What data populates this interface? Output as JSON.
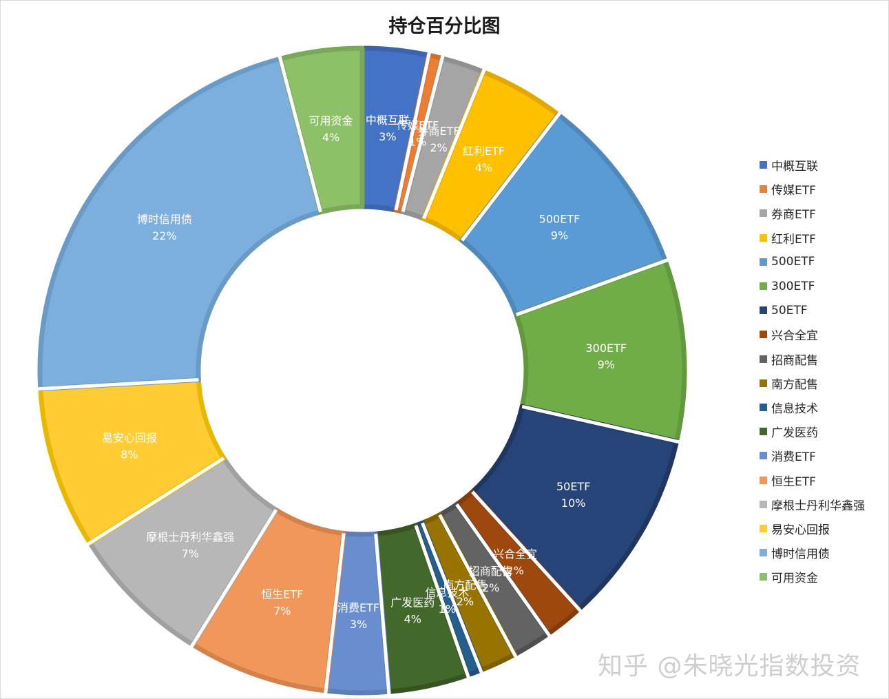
{
  "chart_data": {
    "type": "pie",
    "title": "持仓百分比图",
    "donut": true,
    "legend_position": "right",
    "categories": [
      "中概互联",
      "传媒ETF",
      "券商ETF",
      "红利ETF",
      "500ETF",
      "300ETF",
      "50ETF",
      "兴合全宜",
      "招商配售",
      "南方配售",
      "信息技术",
      "广发医药",
      "消费ETF",
      "恒生ETF",
      "摩根士丹利华鑫强",
      "易安心回报",
      "博时信用债",
      "可用资金"
    ],
    "values": [
      3.4,
      0.7,
      2.2,
      4.4,
      9.3,
      9.3,
      10.0,
      2.0,
      2.0,
      1.9,
      0.7,
      4.1,
      3.2,
      7.2,
      7.4,
      8.3,
      22.4,
      4.2
    ],
    "labels": [
      "3%",
      "1%",
      "2%",
      "4%",
      "9%",
      "9%",
      "10%",
      "2%",
      "2%",
      "2%",
      "1%",
      "4%",
      "3%",
      "7%",
      "7%",
      "8%",
      "22%",
      "4%"
    ],
    "colors": [
      "#4472C4",
      "#ED7D31",
      "#A5A5A5",
      "#FFC000",
      "#5B9BD5",
      "#70AD47",
      "#264478",
      "#9E480E",
      "#636363",
      "#997300",
      "#255E91",
      "#43682B",
      "#698ED0",
      "#F1975A",
      "#B7B7B7",
      "#FFCD33",
      "#7CAFDD",
      "#8CC168"
    ],
    "borders": [
      "#3B64AD",
      "#D06C2A",
      "#909090",
      "#E0A800",
      "#4F88BB",
      "#62983E",
      "#1E3660",
      "#833C0B",
      "#4F4F4F",
      "#7E5F00",
      "#1E4E78",
      "#355422",
      "#5C7DB8",
      "#D4814C",
      "#A0A0A0",
      "#E6B800",
      "#6A9BC6",
      "#78A858"
    ]
  },
  "watermark": "知乎 @朱晓光指数投资"
}
